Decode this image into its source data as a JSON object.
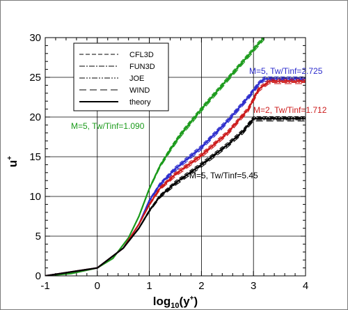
{
  "chart_data": {
    "type": "line",
    "xlim": [
      -1,
      4
    ],
    "ylim": [
      0,
      30
    ],
    "x_ticks": [
      -1,
      0,
      1,
      2,
      3,
      4
    ],
    "y_ticks": [
      0,
      5,
      10,
      15,
      20,
      25,
      30
    ],
    "x_tick_labels": [
      "-1",
      "0",
      "1",
      "2",
      "3",
      "4"
    ],
    "y_tick_labels": [
      "0",
      "5",
      "10",
      "15",
      "20",
      "25",
      "30"
    ],
    "xlabel_main": "log",
    "xlabel_sub": "10",
    "xlabel_arg": "(y",
    "xlabel_sup": "+",
    "xlabel_end": ")",
    "ylabel_main": "u",
    "ylabel_sup": "+",
    "grid": true,
    "legend_position": "top-left",
    "legend": [
      {
        "name": "CFL3D",
        "dash": "6,3"
      },
      {
        "name": "FUN3D",
        "dash": "8,2,2,2"
      },
      {
        "name": "JOE",
        "dash": "8,2,2,2,2,2"
      },
      {
        "name": "WIND",
        "dash": "10,5"
      },
      {
        "name": "theory",
        "dash": "none"
      }
    ],
    "annotations": [
      {
        "text": "M=5, Tw/Tinf=1.090",
        "color": "#1a9a1a"
      },
      {
        "text": "M=5, Tw/Tinf=2.725",
        "color": "#2c2ccc"
      },
      {
        "text": "M=2, Tw/Tinf=1.712",
        "color": "#cc1a1a"
      },
      {
        "text": "M=5, Tw/Tinf=5.45",
        "color": "#000000"
      }
    ],
    "series": [
      {
        "color": "#1a9a1a",
        "x": [
          -1,
          -0.5,
          0,
          0.3,
          0.6,
          0.8,
          1.0,
          1.2,
          1.4,
          1.6,
          2.0,
          2.4,
          2.8,
          3.2
        ],
        "y": [
          0,
          0.3,
          1.0,
          2.2,
          4.8,
          7.5,
          11.0,
          13.8,
          15.9,
          17.8,
          21.0,
          24.0,
          27.0,
          30.0
        ]
      },
      {
        "color": "#2c2ccc",
        "x": [
          -1,
          0,
          0.5,
          0.8,
          1.0,
          1.2,
          1.5,
          2.0,
          2.5,
          2.9,
          3.1,
          3.2,
          4.0
        ],
        "y": [
          0,
          1.0,
          3.5,
          6.5,
          9.5,
          11.5,
          13.5,
          16.2,
          19.5,
          22.5,
          24.2,
          24.8,
          24.8
        ]
      },
      {
        "color": "#cc1a1a",
        "x": [
          -1,
          0,
          0.5,
          0.8,
          1.0,
          1.2,
          1.5,
          2.0,
          2.5,
          2.9,
          3.1,
          3.3,
          4.0
        ],
        "y": [
          0,
          1.0,
          3.5,
          6.5,
          9.0,
          11.0,
          12.8,
          15.2,
          18.0,
          21.0,
          23.5,
          24.5,
          24.5
        ]
      },
      {
        "color": "#000000",
        "x": [
          -1,
          0,
          0.5,
          0.8,
          1.0,
          1.2,
          1.5,
          2.0,
          2.5,
          2.8,
          3.0,
          4.0
        ],
        "y": [
          0,
          1.0,
          3.5,
          6.0,
          8.2,
          10.0,
          11.7,
          14.0,
          16.5,
          18.2,
          19.8,
          19.8
        ]
      }
    ]
  }
}
